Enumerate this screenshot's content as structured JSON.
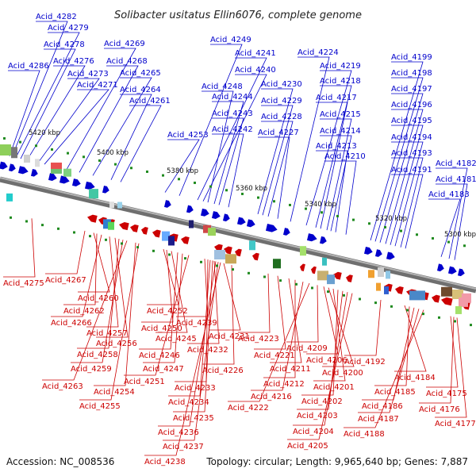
{
  "title": "Solibacter usitatus Ellin6076, complete genome",
  "footer": {
    "accession": "Accession: NC_008536",
    "summary": "Topology: circular; Length: 9,965,640 bp; Genes: 7,887"
  },
  "colors": {
    "top_strand": "#0000cc",
    "bottom_strand": "#cc0000",
    "backbone": "#8a8a8a"
  },
  "kbp_labels": [
    "5420 kbp",
    "5400 kbp",
    "5380 kbp",
    "5360 kbp",
    "5340 kbp",
    "5320 kbp",
    "5300 kbp"
  ],
  "top_genes": [
    "Acid_4282",
    "Acid_4279",
    "Acid_4278",
    "Acid_4286",
    "Acid_4276",
    "Acid_4273",
    "Acid_4271",
    "Acid_4269",
    "Acid_4268",
    "Acid_4265",
    "Acid_4264",
    "Acid_4261",
    "Acid_4249",
    "Acid_4241",
    "Acid_4240",
    "Acid_4248",
    "Acid_4244",
    "Acid_4243",
    "Acid_4242",
    "Acid_4253",
    "Acid_4224",
    "Acid_4219",
    "Acid_4218",
    "Acid_4230",
    "Acid_4229",
    "Acid_4217",
    "Acid_4228",
    "Acid_4215",
    "Acid_4227",
    "Acid_4214",
    "Acid_4213",
    "Acid_4210",
    "Acid_4199",
    "Acid_4198",
    "Acid_4197",
    "Acid_4196",
    "Acid_4195",
    "Acid_4194",
    "Acid_4193",
    "Acid_4191",
    "Acid_4182",
    "Acid_4181",
    "Acid_4183"
  ],
  "bottom_genes": [
    "Acid_4275",
    "Acid_4267",
    "Acid_4260",
    "Acid_4262",
    "Acid_4266",
    "Acid_4257",
    "Acid_4256",
    "Acid_4258",
    "Acid_4259",
    "Acid_4263",
    "Acid_4254",
    "Acid_4255",
    "Acid_4252",
    "Acid_4250",
    "Acid_4245",
    "Acid_4246",
    "Acid_4247",
    "Acid_4251",
    "Acid_4239",
    "Acid_4232",
    "Acid_4231",
    "Acid_4226",
    "Acid_4233",
    "Acid_4234",
    "Acid_4235",
    "Acid_4236",
    "Acid_4237",
    "Acid_4238",
    "Acid_4223",
    "Acid_4221",
    "Acid_4211",
    "Acid_4212",
    "Acid_4216",
    "Acid_4222",
    "Acid_4209",
    "Acid_4206",
    "Acid_4200",
    "Acid_4201",
    "Acid_4202",
    "Acid_4203",
    "Acid_4204",
    "Acid_4205",
    "Acid_4192",
    "Acid_4184",
    "Acid_4185",
    "Acid_4186",
    "Acid_4187",
    "Acid_4188",
    "Acid_4175",
    "Acid_4176",
    "Acid_4177"
  ]
}
